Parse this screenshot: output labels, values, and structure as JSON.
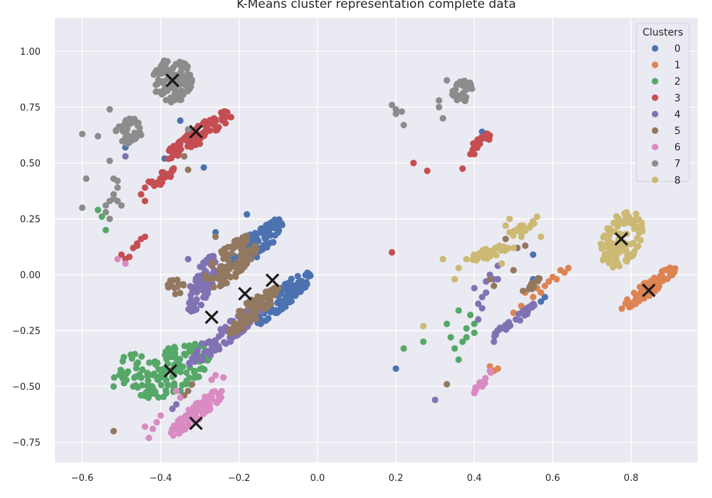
{
  "chart_data": {
    "type": "scatter",
    "title": "K-Means cluster representation complete data",
    "xlabel": "",
    "ylabel": "",
    "xlim": [
      -0.67,
      0.97
    ],
    "ylim": [
      -0.84,
      1.15
    ],
    "x_ticks": [
      -0.6,
      -0.4,
      -0.2,
      0.0,
      0.2,
      0.4,
      0.6,
      0.8
    ],
    "x_tick_labels": [
      "−0.6",
      "−0.4",
      "−0.2",
      "0.0",
      "0.2",
      "0.4",
      "0.6",
      "0.8"
    ],
    "y_ticks": [
      -0.75,
      -0.5,
      -0.25,
      0.0,
      0.25,
      0.5,
      0.75,
      1.0
    ],
    "y_tick_labels": [
      "−0.75",
      "−0.50",
      "−0.25",
      "0.00",
      "0.25",
      "0.50",
      "0.75",
      "1.00"
    ],
    "grid": true,
    "background": "#eaeaf2",
    "legend": {
      "title": "Clusters",
      "placement": "top-right",
      "entries": [
        "0",
        "1",
        "2",
        "3",
        "4",
        "5",
        "6",
        "7",
        "8"
      ]
    },
    "colors": [
      "#4c72b0",
      "#dd8452",
      "#55a868",
      "#c44e52",
      "#8172b3",
      "#937860",
      "#da8bc3",
      "#8c8c8c",
      "#ccb974"
    ],
    "centroid_color": "#1a1a1a",
    "centroids": [
      {
        "x": -0.37,
        "y": 0.87
      },
      {
        "x": -0.31,
        "y": 0.64
      },
      {
        "x": -0.115,
        "y": -0.025
      },
      {
        "x": -0.185,
        "y": -0.085
      },
      {
        "x": -0.27,
        "y": -0.19
      },
      {
        "x": -0.375,
        "y": -0.43
      },
      {
        "x": -0.31,
        "y": -0.665
      },
      {
        "x": 0.775,
        "y": 0.16
      },
      {
        "x": 0.845,
        "y": -0.07
      }
    ],
    "series": [
      {
        "name": "0",
        "blobs": [
          {
            "x": -0.155,
            "y": 0.14,
            "rx": 0.035,
            "ry": 0.13,
            "angle": -30,
            "count": 110
          },
          {
            "x": -0.085,
            "y": -0.1,
            "rx": 0.03,
            "ry": 0.14,
            "angle": -30,
            "count": 100
          }
        ],
        "points": [
          [
            -0.18,
            0.27
          ],
          [
            -0.26,
            0.19
          ],
          [
            0.2,
            -0.42
          ],
          [
            0.55,
            0.09
          ],
          [
            0.57,
            -0.12
          ],
          [
            0.58,
            -0.1
          ],
          [
            -0.35,
            0.69
          ],
          [
            -0.29,
            0.48
          ],
          [
            -0.49,
            0.57
          ],
          [
            -0.39,
            0.52
          ],
          [
            0.42,
            0.64
          ],
          [
            0.55,
            -0.02
          ]
        ]
      },
      {
        "name": "1",
        "blobs": [
          {
            "x": 0.845,
            "y": -0.06,
            "rx": 0.022,
            "ry": 0.12,
            "angle": -35,
            "count": 80
          }
        ],
        "points": [
          [
            0.45,
            -0.43
          ],
          [
            0.46,
            -0.42
          ],
          [
            0.44,
            -0.41
          ],
          [
            0.63,
            0.01
          ],
          [
            0.64,
            0.03
          ],
          [
            0.6,
            -0.01
          ],
          [
            0.62,
            0.02
          ],
          [
            0.59,
            -0.03
          ],
          [
            0.56,
            -0.06
          ],
          [
            0.58,
            -0.05
          ],
          [
            0.57,
            -0.08
          ],
          [
            0.61,
            -0.02
          ],
          [
            0.53,
            -0.08
          ],
          [
            0.55,
            -0.1
          ],
          [
            0.52,
            -0.14
          ],
          [
            0.5,
            -0.17
          ]
        ]
      },
      {
        "name": "2",
        "blobs": [
          {
            "x": -0.37,
            "y": -0.43,
            "rx": 0.075,
            "ry": 0.14,
            "angle": -30,
            "count": 120
          },
          {
            "x": -0.48,
            "y": -0.42,
            "rx": 0.04,
            "ry": 0.07,
            "angle": -20,
            "count": 25
          }
        ],
        "points": [
          [
            -0.55,
            0.26
          ],
          [
            -0.54,
            0.2
          ],
          [
            -0.56,
            0.29
          ],
          [
            0.22,
            -0.33
          ],
          [
            0.27,
            -0.3
          ],
          [
            0.34,
            -0.28
          ],
          [
            0.35,
            -0.33
          ],
          [
            0.38,
            -0.24
          ],
          [
            0.39,
            -0.18
          ],
          [
            0.36,
            -0.38
          ],
          [
            0.38,
            -0.28
          ],
          [
            0.4,
            -0.22
          ],
          [
            0.37,
            -0.3
          ],
          [
            0.33,
            -0.22
          ],
          [
            0.36,
            -0.16
          ],
          [
            0.4,
            -0.26
          ],
          [
            -0.52,
            -0.5
          ],
          [
            -0.5,
            -0.45
          ],
          [
            -0.47,
            -0.5
          ]
        ]
      },
      {
        "name": "3",
        "blobs": [
          {
            "x": -0.3,
            "y": 0.63,
            "rx": 0.028,
            "ry": 0.14,
            "angle": -38,
            "count": 80
          },
          {
            "x": -0.4,
            "y": 0.43,
            "rx": 0.018,
            "ry": 0.06,
            "angle": -40,
            "count": 25
          },
          {
            "x": 0.42,
            "y": 0.6,
            "rx": 0.013,
            "ry": 0.05,
            "angle": -35,
            "count": 20
          }
        ],
        "points": [
          [
            -0.44,
            0.33
          ],
          [
            -0.45,
            0.36
          ],
          [
            -0.44,
            0.39
          ],
          [
            -0.46,
            0.13
          ],
          [
            -0.45,
            0.16
          ],
          [
            -0.47,
            0.12
          ],
          [
            -0.44,
            0.17
          ],
          [
            -0.46,
            0.14
          ],
          [
            -0.5,
            0.09
          ],
          [
            -0.49,
            0.07
          ],
          [
            -0.48,
            0.08
          ],
          [
            0.19,
            0.1
          ],
          [
            0.245,
            0.5
          ],
          [
            0.28,
            0.465
          ],
          [
            0.37,
            0.475
          ],
          [
            0.39,
            0.54
          ],
          [
            0.4,
            0.54
          ]
        ]
      },
      {
        "name": "4",
        "blobs": [
          {
            "x": -0.295,
            "y": -0.04,
            "rx": 0.028,
            "ry": 0.13,
            "angle": -12,
            "count": 80
          },
          {
            "x": -0.235,
            "y": -0.27,
            "rx": 0.03,
            "ry": 0.16,
            "angle": -35,
            "count": 80
          },
          {
            "x": 0.505,
            "y": -0.2,
            "rx": 0.012,
            "ry": 0.1,
            "angle": -38,
            "count": 35
          }
        ],
        "points": [
          [
            0.42,
            -0.1
          ],
          [
            0.41,
            -0.13
          ],
          [
            0.43,
            -0.08
          ],
          [
            0.4,
            -0.06
          ],
          [
            0.42,
            -0.15
          ],
          [
            0.41,
            -0.2
          ],
          [
            0.43,
            -0.03
          ],
          [
            0.45,
            -0.02
          ],
          [
            0.46,
            0.04
          ],
          [
            0.46,
            -0.02
          ],
          [
            0.44,
            0.0
          ],
          [
            0.3,
            -0.56
          ],
          [
            0.45,
            -0.3
          ],
          [
            -0.49,
            0.53
          ],
          [
            -0.33,
            0.07
          ],
          [
            -0.36,
            -0.58
          ],
          [
            -0.37,
            -0.6
          ]
        ]
      },
      {
        "name": "5",
        "blobs": [
          {
            "x": -0.22,
            "y": 0.06,
            "rx": 0.045,
            "ry": 0.13,
            "angle": -25,
            "count": 100
          },
          {
            "x": -0.16,
            "y": -0.15,
            "rx": 0.03,
            "ry": 0.13,
            "angle": -30,
            "count": 80
          },
          {
            "x": -0.36,
            "y": -0.05,
            "rx": 0.025,
            "ry": 0.04,
            "angle": 0,
            "count": 15
          },
          {
            "x": 0.545,
            "y": -0.05,
            "rx": 0.012,
            "ry": 0.04,
            "angle": -30,
            "count": 12
          }
        ],
        "points": [
          [
            -0.52,
            -0.7
          ],
          [
            0.33,
            -0.49
          ],
          [
            0.44,
            -0.02
          ],
          [
            0.45,
            -0.05
          ],
          [
            0.5,
            0.02
          ],
          [
            0.47,
            0.11
          ],
          [
            0.48,
            0.16
          ],
          [
            0.51,
            0.12
          ],
          [
            0.53,
            0.13
          ],
          [
            -0.34,
            0.53
          ],
          [
            -0.33,
            0.47
          ],
          [
            -0.26,
            0.17
          ],
          [
            -0.33,
            -0.52
          ],
          [
            -0.32,
            -0.49
          ],
          [
            -0.34,
            -0.54
          ]
        ]
      },
      {
        "name": "6",
        "blobs": [
          {
            "x": -0.305,
            "y": -0.61,
            "rx": 0.025,
            "ry": 0.13,
            "angle": -32,
            "count": 90
          },
          {
            "x": 0.42,
            "y": -0.48,
            "rx": 0.01,
            "ry": 0.05,
            "angle": -25,
            "count": 15
          }
        ],
        "points": [
          [
            -0.51,
            0.07
          ],
          [
            -0.49,
            0.05
          ],
          [
            -0.44,
            -0.68
          ],
          [
            -0.43,
            -0.73
          ],
          [
            -0.42,
            -0.69
          ],
          [
            -0.41,
            -0.66
          ],
          [
            -0.4,
            -0.63
          ],
          [
            -0.27,
            -0.47
          ],
          [
            -0.26,
            -0.45
          ],
          [
            -0.24,
            -0.46
          ],
          [
            -0.36,
            -0.52
          ],
          [
            -0.35,
            -0.55
          ],
          [
            0.4,
            -0.53
          ],
          [
            0.42,
            -0.5
          ],
          [
            0.44,
            -0.43
          ]
        ]
      },
      {
        "name": "7",
        "blobs": [
          {
            "x": -0.37,
            "y": 0.87,
            "rx": 0.05,
            "ry": 0.1,
            "angle": 0,
            "count": 110
          },
          {
            "x": -0.48,
            "y": 0.64,
            "rx": 0.035,
            "ry": 0.06,
            "angle": -10,
            "count": 40
          },
          {
            "x": 0.37,
            "y": 0.82,
            "rx": 0.025,
            "ry": 0.05,
            "angle": -10,
            "count": 30
          }
        ],
        "points": [
          [
            -0.6,
            0.63
          ],
          [
            -0.59,
            0.43
          ],
          [
            -0.6,
            0.3
          ],
          [
            -0.56,
            0.62
          ],
          [
            -0.53,
            0.74
          ],
          [
            -0.53,
            0.51
          ],
          [
            -0.51,
            0.42
          ],
          [
            -0.52,
            0.43
          ],
          [
            -0.51,
            0.39
          ],
          [
            -0.52,
            0.36
          ],
          [
            -0.53,
            0.33
          ],
          [
            -0.54,
            0.31
          ],
          [
            -0.54,
            0.28
          ],
          [
            -0.53,
            0.25
          ],
          [
            -0.52,
            0.34
          ],
          [
            -0.51,
            0.33
          ],
          [
            -0.5,
            0.31
          ],
          [
            0.19,
            0.76
          ],
          [
            0.2,
            0.74
          ],
          [
            0.2,
            0.72
          ],
          [
            0.215,
            0.73
          ],
          [
            0.22,
            0.67
          ],
          [
            0.33,
            0.87
          ],
          [
            0.31,
            0.78
          ],
          [
            0.31,
            0.75
          ],
          [
            0.32,
            0.7
          ],
          [
            -0.33,
            0.65
          ]
        ]
      },
      {
        "name": "8",
        "blobs": [
          {
            "x": 0.775,
            "y": 0.16,
            "rx": 0.05,
            "ry": 0.13,
            "angle": -10,
            "count": 110
          },
          {
            "x": 0.44,
            "y": 0.1,
            "rx": 0.02,
            "ry": 0.06,
            "angle": -55,
            "count": 35
          },
          {
            "x": 0.525,
            "y": 0.21,
            "rx": 0.015,
            "ry": 0.05,
            "angle": -40,
            "count": 20
          }
        ],
        "points": [
          [
            0.27,
            -0.23
          ],
          [
            0.32,
            0.07
          ],
          [
            0.36,
            0.03
          ],
          [
            0.35,
            -0.02
          ],
          [
            0.38,
            0.07
          ],
          [
            0.4,
            0.09
          ],
          [
            0.48,
            0.22
          ],
          [
            0.49,
            0.25
          ],
          [
            0.53,
            0.2
          ],
          [
            0.56,
            0.26
          ],
          [
            0.57,
            0.17
          ],
          [
            0.52,
            0.17
          ],
          [
            0.49,
            0.19
          ],
          [
            0.5,
            0.12
          ],
          [
            0.47,
            0.05
          ]
        ]
      }
    ]
  }
}
